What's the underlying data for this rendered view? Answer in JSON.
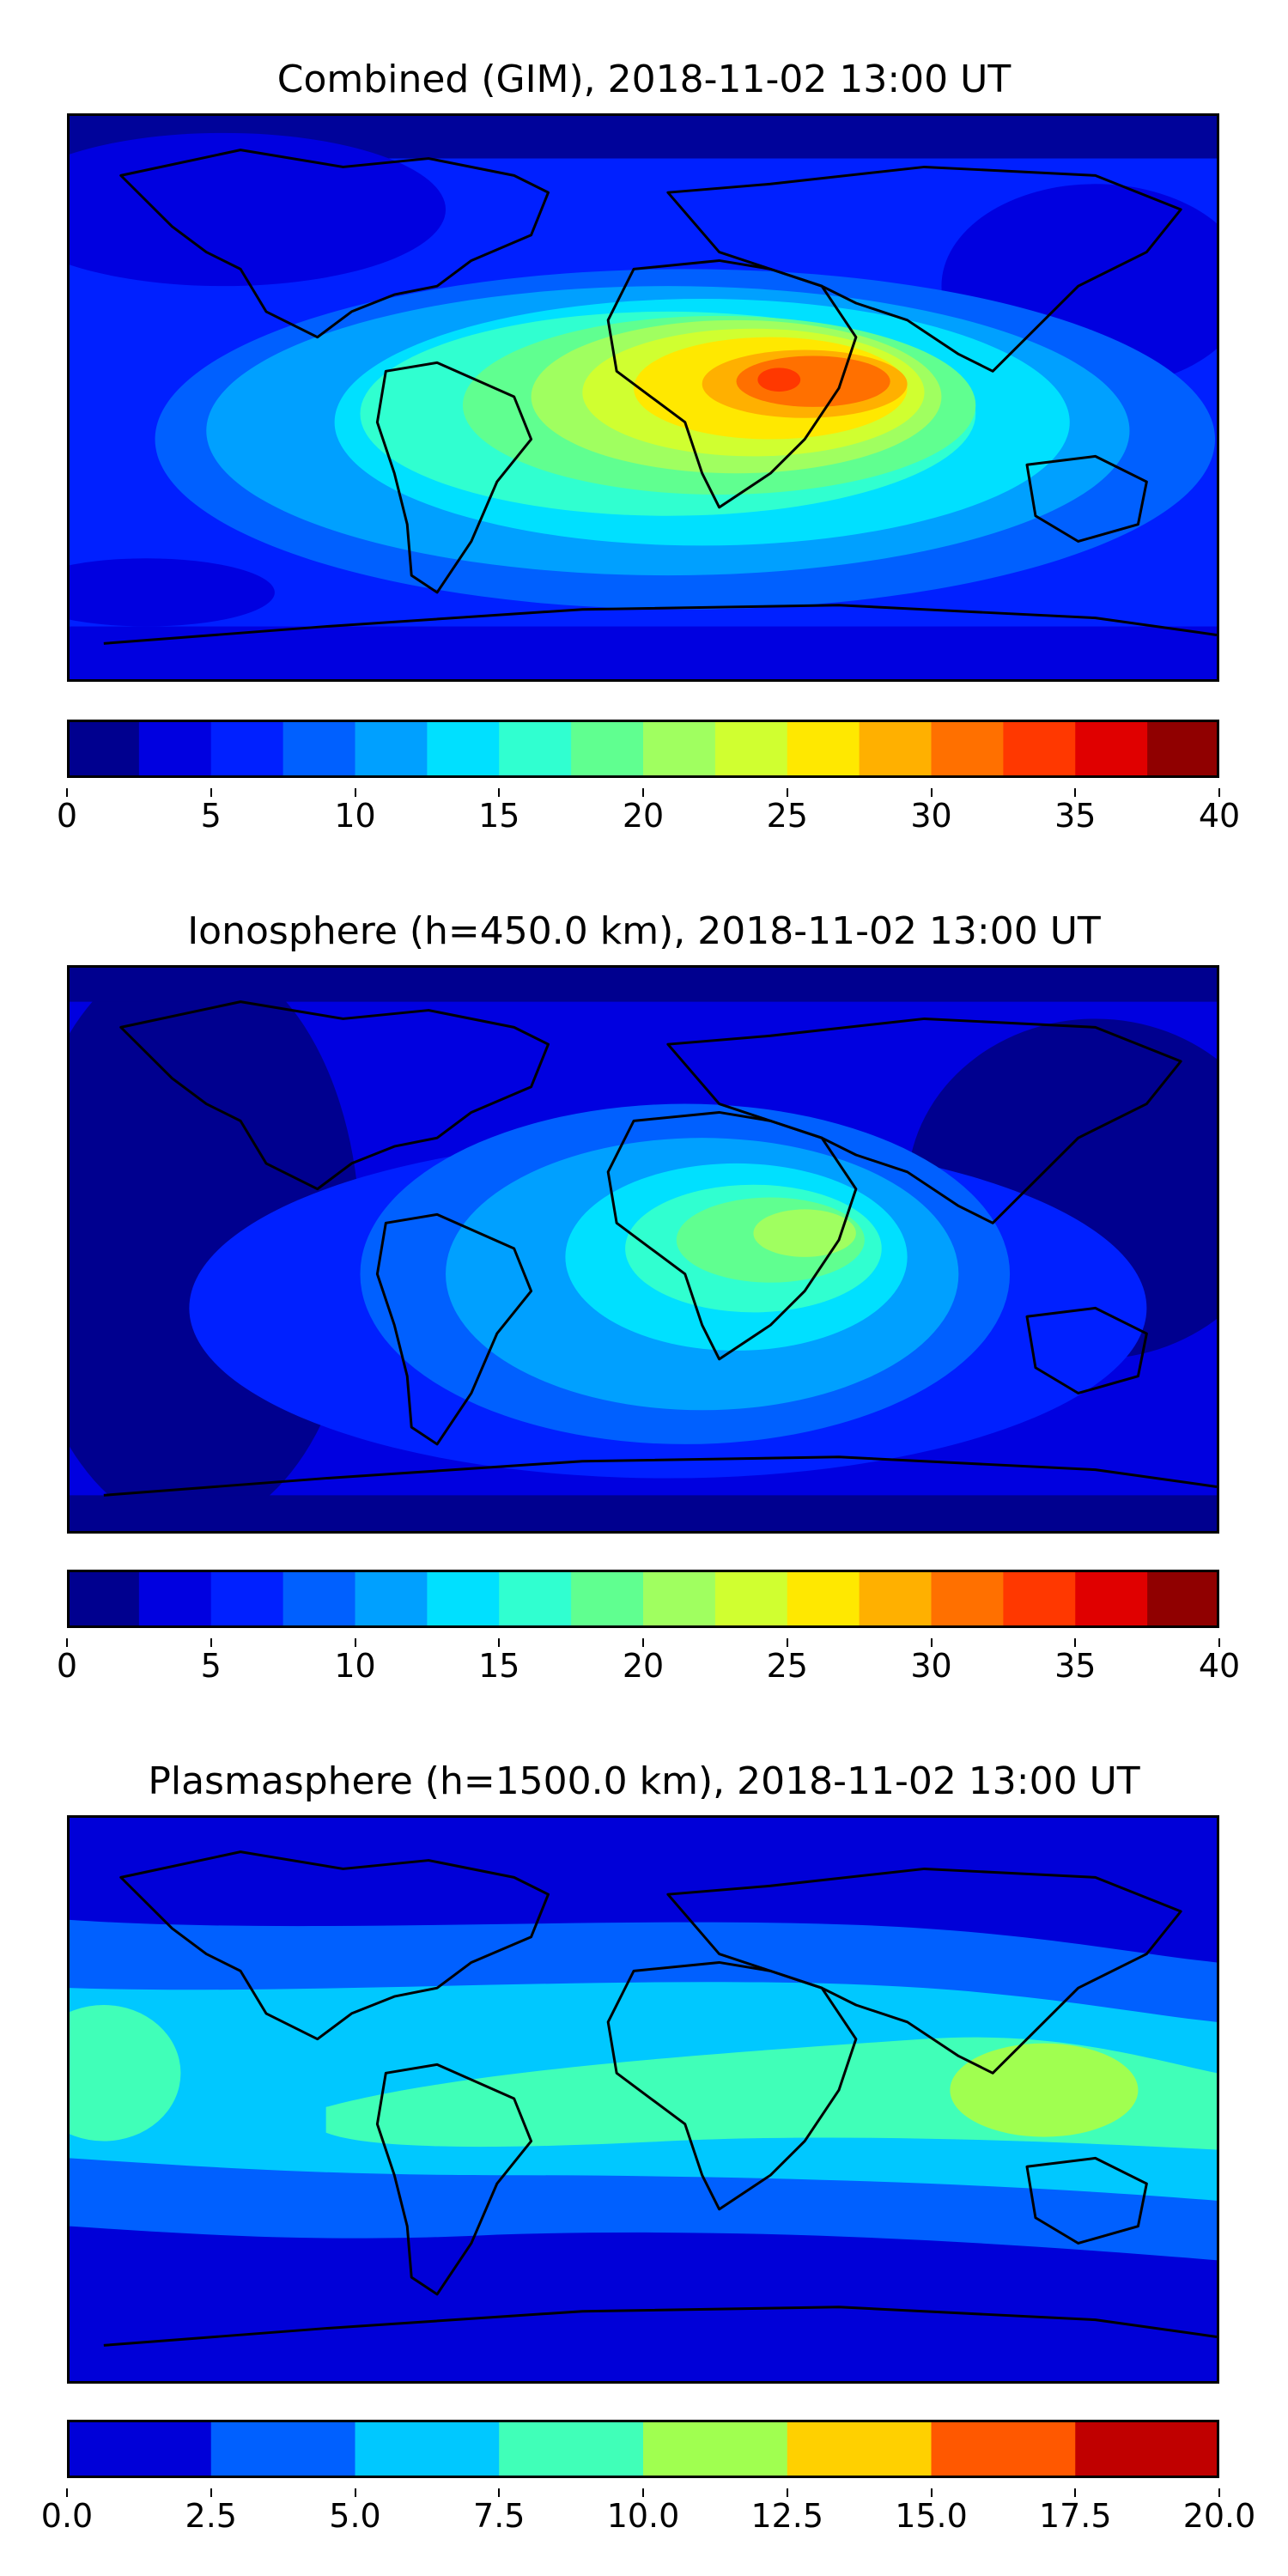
{
  "chart_data": [
    {
      "type": "heatmap",
      "title": "Combined (GIM), 2018-11-02 13:00 UT",
      "colorbar": {
        "levels": [
          0,
          2.5,
          5,
          7.5,
          10,
          12.5,
          15,
          17.5,
          20,
          22.5,
          25,
          27.5,
          30,
          32.5,
          35,
          37.5,
          40
        ],
        "colors": [
          "#00008f",
          "#0000e0",
          "#0020ff",
          "#0060ff",
          "#00a0ff",
          "#00e0ff",
          "#30ffd0",
          "#60ff90",
          "#a0ff60",
          "#d0ff30",
          "#ffe800",
          "#ffb000",
          "#ff7000",
          "#ff3800",
          "#e00000",
          "#900000"
        ],
        "tick_labels": [
          "0",
          "5",
          "10",
          "15",
          "20",
          "25",
          "30",
          "35",
          "40"
        ],
        "range": [
          0,
          40
        ]
      },
      "xlabel": "",
      "ylabel": "",
      "peak_region": "Eastern Africa",
      "peak_value_approx": 32
    },
    {
      "type": "heatmap",
      "title": "Ionosphere  (h=450.0 km), 2018-11-02 13:00 UT",
      "colorbar": {
        "levels": [
          0,
          2.5,
          5,
          7.5,
          10,
          12.5,
          15,
          17.5,
          20,
          22.5,
          25,
          27.5,
          30,
          32.5,
          35,
          37.5,
          40
        ],
        "colors": [
          "#00008f",
          "#0000e0",
          "#0020ff",
          "#0060ff",
          "#00a0ff",
          "#00e0ff",
          "#30ffd0",
          "#60ff90",
          "#a0ff60",
          "#d0ff30",
          "#ffe800",
          "#ffb000",
          "#ff7000",
          "#ff3800",
          "#e00000",
          "#900000"
        ],
        "tick_labels": [
          "0",
          "5",
          "10",
          "15",
          "20",
          "25",
          "30",
          "35",
          "40"
        ],
        "range": [
          0,
          40
        ]
      },
      "xlabel": "",
      "ylabel": "",
      "peak_region": "Eastern Africa",
      "peak_value_approx": 22
    },
    {
      "type": "heatmap",
      "title": "Plasmasphere (h=1500.0 km), 2018-11-02 13:00 UT",
      "colorbar": {
        "levels": [
          0,
          2.5,
          5,
          7.5,
          10,
          12.5,
          15,
          17.5,
          20
        ],
        "colors": [
          "#0000d8",
          "#0060ff",
          "#00c8ff",
          "#40ffb8",
          "#a0ff50",
          "#ffd000",
          "#ff5800",
          "#c00000"
        ],
        "tick_labels": [
          "0.0",
          "2.5",
          "5.0",
          "7.5",
          "10.0",
          "12.5",
          "15.0",
          "17.5",
          "20.0"
        ],
        "range": [
          0,
          20
        ]
      },
      "xlabel": "",
      "ylabel": "",
      "peak_region": "Southeast Asia",
      "peak_value_approx": 11
    }
  ]
}
